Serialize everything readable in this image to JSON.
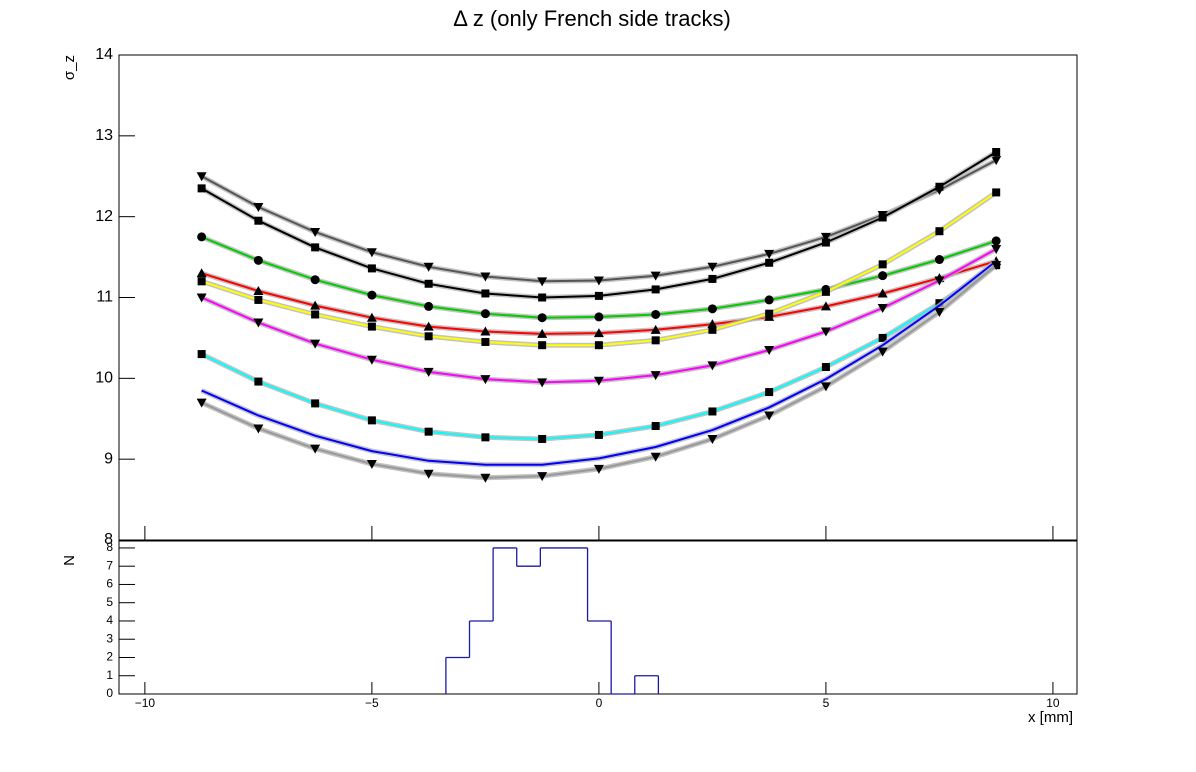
{
  "chart_data": [
    {
      "type": "line",
      "title": "Δ z (only French side tracks)",
      "y_label": "σ_z",
      "x": [
        -8.75,
        -7.5,
        -6.25,
        -5,
        -3.75,
        -2.5,
        -1.25,
        0,
        1.25,
        2.5,
        3.75,
        5,
        6.25,
        7.5,
        8.75
      ],
      "xlim": [
        -10.57,
        10.53
      ],
      "ylim": [
        8,
        14
      ],
      "yticks": [
        8,
        9,
        10,
        11,
        12,
        13,
        14
      ],
      "series": [
        {
          "color": "#555555",
          "marker": "triangle-down",
          "values": [
            12.5,
            12.12,
            11.81,
            11.56,
            11.38,
            11.26,
            11.2,
            11.21,
            11.27,
            11.38,
            11.54,
            11.75,
            12.02,
            12.33,
            12.7
          ]
        },
        {
          "color": "#000000",
          "marker": "square",
          "values": [
            12.35,
            11.95,
            11.62,
            11.36,
            11.17,
            11.05,
            11.0,
            11.02,
            11.1,
            11.23,
            11.43,
            11.68,
            11.99,
            12.37,
            12.8
          ]
        },
        {
          "color": "#00cc00",
          "marker": "circle",
          "values": [
            11.75,
            11.46,
            11.22,
            11.03,
            10.89,
            10.8,
            10.75,
            10.76,
            10.79,
            10.86,
            10.97,
            11.1,
            11.27,
            11.47,
            11.7
          ]
        },
        {
          "color": "#ff0000",
          "marker": "triangle-up",
          "values": [
            11.3,
            11.08,
            10.9,
            10.75,
            10.64,
            10.58,
            10.55,
            10.56,
            10.6,
            10.67,
            10.76,
            10.89,
            11.05,
            11.24,
            11.45
          ]
        },
        {
          "color": "#ffff00",
          "marker": "square",
          "values": [
            11.2,
            10.97,
            10.79,
            10.64,
            10.52,
            10.45,
            10.41,
            10.41,
            10.47,
            10.6,
            10.8,
            11.07,
            11.41,
            11.82,
            12.3
          ]
        },
        {
          "color": "#ff00ff",
          "marker": "triangle-down",
          "values": [
            11.0,
            10.69,
            10.43,
            10.23,
            10.08,
            9.99,
            9.95,
            9.97,
            10.04,
            10.16,
            10.35,
            10.58,
            10.87,
            11.21,
            11.6
          ]
        },
        {
          "color": "#00ffff",
          "marker": "square",
          "values": [
            10.3,
            9.96,
            9.69,
            9.48,
            9.34,
            9.27,
            9.25,
            9.3,
            9.41,
            9.59,
            9.83,
            10.14,
            10.5,
            10.93,
            11.4
          ]
        },
        {
          "color": "#0000ff",
          "marker": "none",
          "values": [
            9.85,
            9.54,
            9.29,
            9.1,
            8.98,
            8.93,
            8.93,
            9.01,
            9.15,
            9.36,
            9.64,
            9.99,
            10.41,
            10.9,
            11.45
          ]
        },
        {
          "color": "#999999",
          "marker": "triangle-down",
          "values": [
            9.7,
            9.38,
            9.13,
            8.94,
            8.82,
            8.77,
            8.79,
            8.88,
            9.03,
            9.25,
            9.54,
            9.9,
            10.33,
            10.82,
            11.4
          ]
        }
      ]
    },
    {
      "type": "histogram",
      "x_label": "x [mm]",
      "y_label": "N",
      "color": "#1a1aa8",
      "bins": [
        -3.37,
        -2.85,
        -2.33,
        -1.81,
        -1.29,
        -0.77,
        -0.25,
        0.27,
        0.79,
        1.31
      ],
      "values": [
        2,
        4,
        8,
        7,
        8,
        8,
        4,
        0,
        1
      ],
      "xlim": [
        -10.57,
        10.53
      ],
      "xticks": [
        {
          "value": -10,
          "label": "−10"
        },
        {
          "value": -5,
          "label": "−5"
        },
        0,
        5,
        10
      ],
      "ylim": [
        0,
        8.38
      ],
      "yticks": [
        0,
        1,
        2,
        3,
        4,
        5,
        6,
        7,
        8
      ]
    }
  ]
}
